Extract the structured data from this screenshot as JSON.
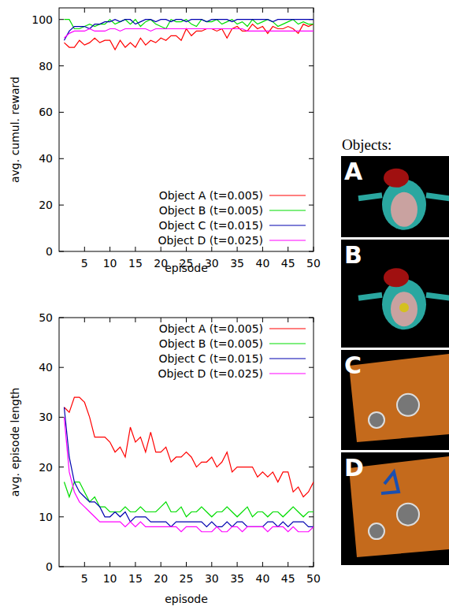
{
  "chart_data": [
    {
      "type": "line",
      "x_label": "episode",
      "y_label": "avg. cumul. reward",
      "x": [
        1,
        2,
        3,
        4,
        5,
        6,
        7,
        8,
        9,
        10,
        11,
        12,
        13,
        14,
        15,
        16,
        17,
        18,
        19,
        20,
        21,
        22,
        23,
        24,
        25,
        26,
        27,
        28,
        29,
        30,
        31,
        32,
        33,
        34,
        35,
        36,
        37,
        38,
        39,
        40,
        41,
        42,
        43,
        44,
        45,
        46,
        47,
        48,
        49,
        50
      ],
      "xlim": [
        0,
        50
      ],
      "xticks": [
        5,
        10,
        15,
        20,
        25,
        30,
        35,
        40,
        45,
        50
      ],
      "ylim": [
        0,
        105
      ],
      "yticks": [
        0,
        20,
        40,
        60,
        80,
        100
      ],
      "legend": "lower right",
      "series": [
        {
          "name": "Object A (t=0.005)",
          "color": "#ff0000",
          "values": [
            90,
            88,
            88,
            91,
            89,
            90,
            92,
            90,
            91,
            91,
            87,
            91,
            88,
            90,
            88,
            92,
            89,
            91,
            90,
            92,
            91,
            93,
            93,
            91,
            96,
            93,
            95,
            95,
            96,
            96,
            95,
            96,
            92,
            96,
            97,
            95,
            95,
            98,
            96,
            97,
            94,
            97,
            96,
            96,
            97,
            96,
            94,
            98,
            97,
            98
          ]
        },
        {
          "name": "Object B (t=0.005)",
          "color": "#00dd00",
          "values": [
            100,
            100,
            96,
            96,
            97,
            98,
            97,
            98,
            98,
            100,
            98,
            99,
            100,
            98,
            100,
            97,
            99,
            100,
            98,
            97,
            96,
            100,
            99,
            99,
            100,
            98,
            97,
            100,
            99,
            99,
            100,
            98,
            99,
            100,
            98,
            99,
            97,
            100,
            98,
            99,
            100,
            99,
            97,
            98,
            99,
            100,
            98,
            99,
            98,
            98
          ]
        },
        {
          "name": "Object C (t=0.015)",
          "color": "#0000b0",
          "values": [
            91,
            95,
            97,
            97,
            97,
            96,
            98,
            98,
            99,
            99,
            100,
            99,
            100,
            100,
            98,
            99,
            100,
            100,
            99,
            100,
            100,
            99,
            100,
            100,
            99,
            100,
            100,
            100,
            99,
            100,
            100,
            100,
            100,
            99,
            100,
            100,
            100,
            100,
            100,
            100,
            100,
            99,
            100,
            100,
            100,
            100,
            100,
            100,
            100,
            100
          ]
        },
        {
          "name": "Object D (t=0.025)",
          "color": "#ff00ff",
          "values": [
            92,
            94,
            95,
            95,
            95,
            96,
            95,
            95,
            95,
            96,
            96,
            95,
            96,
            96,
            96,
            96,
            96,
            95,
            96,
            96,
            96,
            96,
            96,
            96,
            96,
            96,
            96,
            96,
            96,
            96,
            96,
            96,
            96,
            96,
            96,
            96,
            95,
            95,
            95,
            95,
            95,
            95,
            95,
            95,
            95,
            95,
            95,
            95,
            95,
            95
          ]
        }
      ]
    },
    {
      "type": "line",
      "x_label": "episode",
      "y_label": "avg. episode length",
      "x": [
        1,
        2,
        3,
        4,
        5,
        6,
        7,
        8,
        9,
        10,
        11,
        12,
        13,
        14,
        15,
        16,
        17,
        18,
        19,
        20,
        21,
        22,
        23,
        24,
        25,
        26,
        27,
        28,
        29,
        30,
        31,
        32,
        33,
        34,
        35,
        36,
        37,
        38,
        39,
        40,
        41,
        42,
        43,
        44,
        45,
        46,
        47,
        48,
        49,
        50
      ],
      "xlim": [
        0,
        50
      ],
      "xticks": [
        5,
        10,
        15,
        20,
        25,
        30,
        35,
        40,
        45,
        50
      ],
      "ylim": [
        0,
        50
      ],
      "yticks": [
        0,
        10,
        20,
        30,
        40,
        50
      ],
      "legend": "upper right",
      "series": [
        {
          "name": "Object A (t=0.005)",
          "color": "#ff0000",
          "values": [
            32,
            31,
            34,
            34,
            33,
            30,
            26,
            26,
            26,
            25,
            23,
            24,
            22,
            28,
            25,
            26,
            23,
            27,
            23,
            23,
            24,
            21,
            22,
            22,
            23,
            22,
            20,
            21,
            21,
            22,
            20,
            21,
            23,
            19,
            20,
            20,
            20,
            20,
            18,
            19,
            18,
            19,
            17,
            19,
            19,
            15,
            16,
            14,
            15,
            17
          ]
        },
        {
          "name": "Object B (t=0.005)",
          "color": "#00dd00",
          "values": [
            17,
            14,
            17,
            17,
            15,
            13,
            14,
            12,
            12,
            11,
            11,
            11,
            12,
            11,
            11,
            12,
            11,
            11,
            11,
            12,
            13,
            11,
            11,
            12,
            10,
            11,
            11,
            12,
            11,
            10,
            11,
            11,
            12,
            11,
            10,
            11,
            12,
            10,
            11,
            11,
            10,
            11,
            11,
            10,
            11,
            12,
            11,
            10,
            11,
            11
          ]
        },
        {
          "name": "Object C (t=0.015)",
          "color": "#0000b0",
          "values": [
            32,
            22,
            17,
            15,
            14,
            13,
            13,
            12,
            10,
            10,
            11,
            10,
            11,
            9,
            10,
            10,
            10,
            9,
            9,
            9,
            9,
            8,
            9,
            9,
            9,
            9,
            9,
            9,
            8,
            9,
            8,
            8,
            9,
            8,
            9,
            9,
            8,
            8,
            8,
            8,
            9,
            9,
            8,
            9,
            8,
            9,
            9,
            9,
            8,
            8
          ]
        },
        {
          "name": "Object D (t=0.025)",
          "color": "#ff00ff",
          "values": [
            30,
            19,
            15,
            13,
            12,
            11,
            10,
            9,
            9,
            9,
            9,
            9,
            8,
            9,
            8,
            9,
            8,
            8,
            8,
            8,
            8,
            8,
            8,
            7,
            8,
            8,
            8,
            7,
            7,
            7,
            8,
            7,
            7,
            8,
            8,
            7,
            8,
            8,
            8,
            8,
            7,
            8,
            8,
            8,
            7,
            8,
            7,
            7,
            7,
            8
          ]
        }
      ]
    }
  ],
  "objects": {
    "title": "Objects:",
    "labels": [
      "A",
      "B",
      "C",
      "D"
    ]
  }
}
